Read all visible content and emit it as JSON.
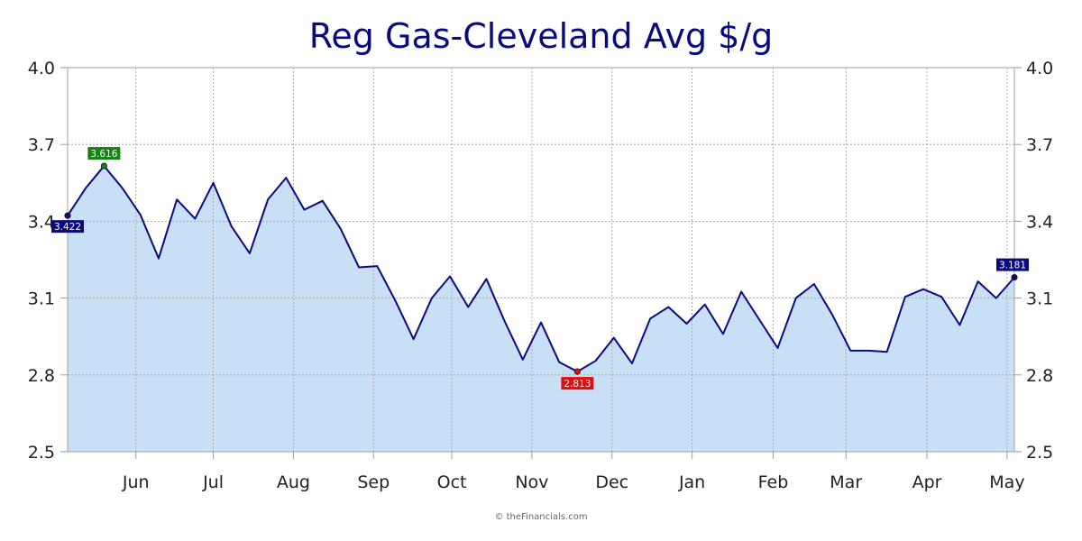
{
  "chart_data": {
    "type": "area",
    "title": "Reg Gas-Cleveland Avg $/g",
    "ylim": [
      2.5,
      4.0
    ],
    "yticks": [
      "2.5",
      "2.8",
      "3.1",
      "3.4",
      "3.7",
      "4.0"
    ],
    "ytick_values": [
      2.5,
      2.8,
      3.1,
      3.4,
      3.7,
      4.0
    ],
    "grid": true,
    "x_tick_labels": [
      {
        "label": "Jun",
        "index": 3.75
      },
      {
        "label": "Jul",
        "index": 8.0
      },
      {
        "label": "Aug",
        "index": 12.4
      },
      {
        "label": "Sep",
        "index": 16.8
      },
      {
        "label": "Oct",
        "index": 21.1
      },
      {
        "label": "Nov",
        "index": 25.5
      },
      {
        "label": "Dec",
        "index": 29.9
      },
      {
        "label": "Jan",
        "index": 34.3
      },
      {
        "label": "Feb",
        "index": 38.75
      },
      {
        "label": "Mar",
        "index": 42.75
      },
      {
        "label": "Apr",
        "index": 47.2
      },
      {
        "label": "May",
        "index": 51.6
      }
    ],
    "series": [
      {
        "values": [
          3.422,
          3.53,
          3.616,
          3.53,
          3.425,
          3.255,
          3.485,
          3.41,
          3.55,
          3.38,
          3.275,
          3.485,
          3.57,
          3.445,
          3.48,
          3.37,
          3.22,
          3.225,
          3.09,
          2.94,
          3.1,
          3.185,
          3.065,
          3.175,
          3.01,
          2.86,
          3.005,
          2.85,
          2.813,
          2.855,
          2.945,
          2.845,
          3.02,
          3.065,
          3.0,
          3.075,
          2.96,
          3.125,
          3.015,
          2.905,
          3.1,
          3.155,
          3.035,
          2.895,
          2.895,
          2.89,
          3.105,
          3.135,
          3.105,
          2.995,
          3.165,
          3.1,
          3.181
        ]
      }
    ],
    "annotations": [
      {
        "index": 0,
        "value": "3.422",
        "color": "#0a0a80"
      },
      {
        "index": 2,
        "value": "3.616",
        "color": "#168216"
      },
      {
        "index": 28,
        "value": "2.813",
        "color": "#e01010"
      },
      {
        "index": 52,
        "value": "3.181",
        "color": "#0a0a80"
      }
    ],
    "colors": {
      "line": "#0a0a80",
      "fill": "#c9dff5",
      "high": "#168216",
      "low": "#e01010"
    }
  },
  "footer": "© theFinancials.com"
}
